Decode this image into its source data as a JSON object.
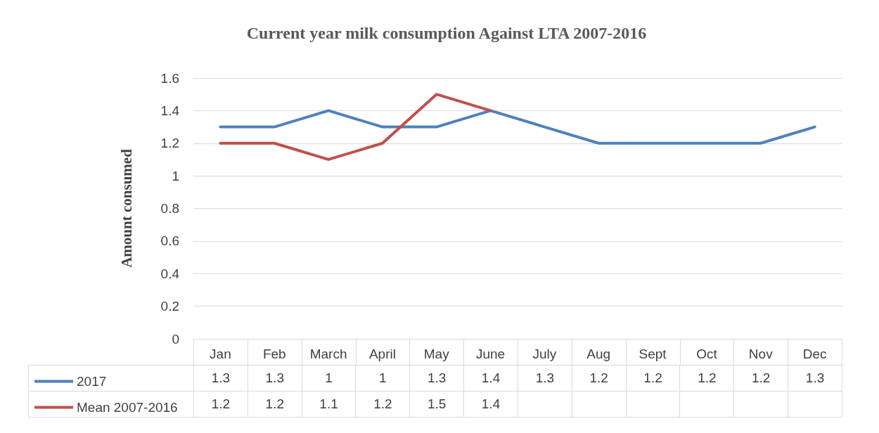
{
  "chart_data": {
    "type": "line",
    "title": "Current year milk consumption Against LTA 2007-2016",
    "ylabel": "Amount consumed",
    "categories": [
      "Jan",
      "Feb",
      "March",
      "April",
      "May",
      "June",
      "July",
      "Aug",
      "Sept",
      "Oct",
      "Nov",
      "Dec"
    ],
    "series": [
      {
        "name": "2017",
        "color": "#4f81bd",
        "values": [
          1.3,
          1.3,
          1.4,
          1.3,
          1.3,
          1.4,
          1.3,
          1.2,
          1.2,
          1.2,
          1.2,
          1.3
        ],
        "value_labels": [
          "1.3",
          "1.3",
          "1",
          "1",
          "1.3",
          "1.4",
          "1.3",
          "1.2",
          "1.2",
          "1.2",
          "1.2",
          "1.3"
        ]
      },
      {
        "name": "Mean 2007-2016",
        "color": "#c0504d",
        "values": [
          1.2,
          1.2,
          1.1,
          1.2,
          1.5,
          1.4,
          null,
          null,
          null,
          null,
          null,
          null
        ],
        "value_labels": [
          "1.2",
          "1.2",
          "1.1",
          "1.2",
          "1.5",
          "1.4",
          null,
          null,
          null,
          null,
          null,
          null
        ]
      }
    ],
    "ylim": [
      0,
      1.6
    ],
    "yticks": [
      0,
      0.2,
      0.4,
      0.6,
      0.8,
      1,
      1.2,
      1.4,
      1.6
    ],
    "grid": "y",
    "legend": "bottom",
    "marker": "none",
    "line_style": "solid"
  }
}
